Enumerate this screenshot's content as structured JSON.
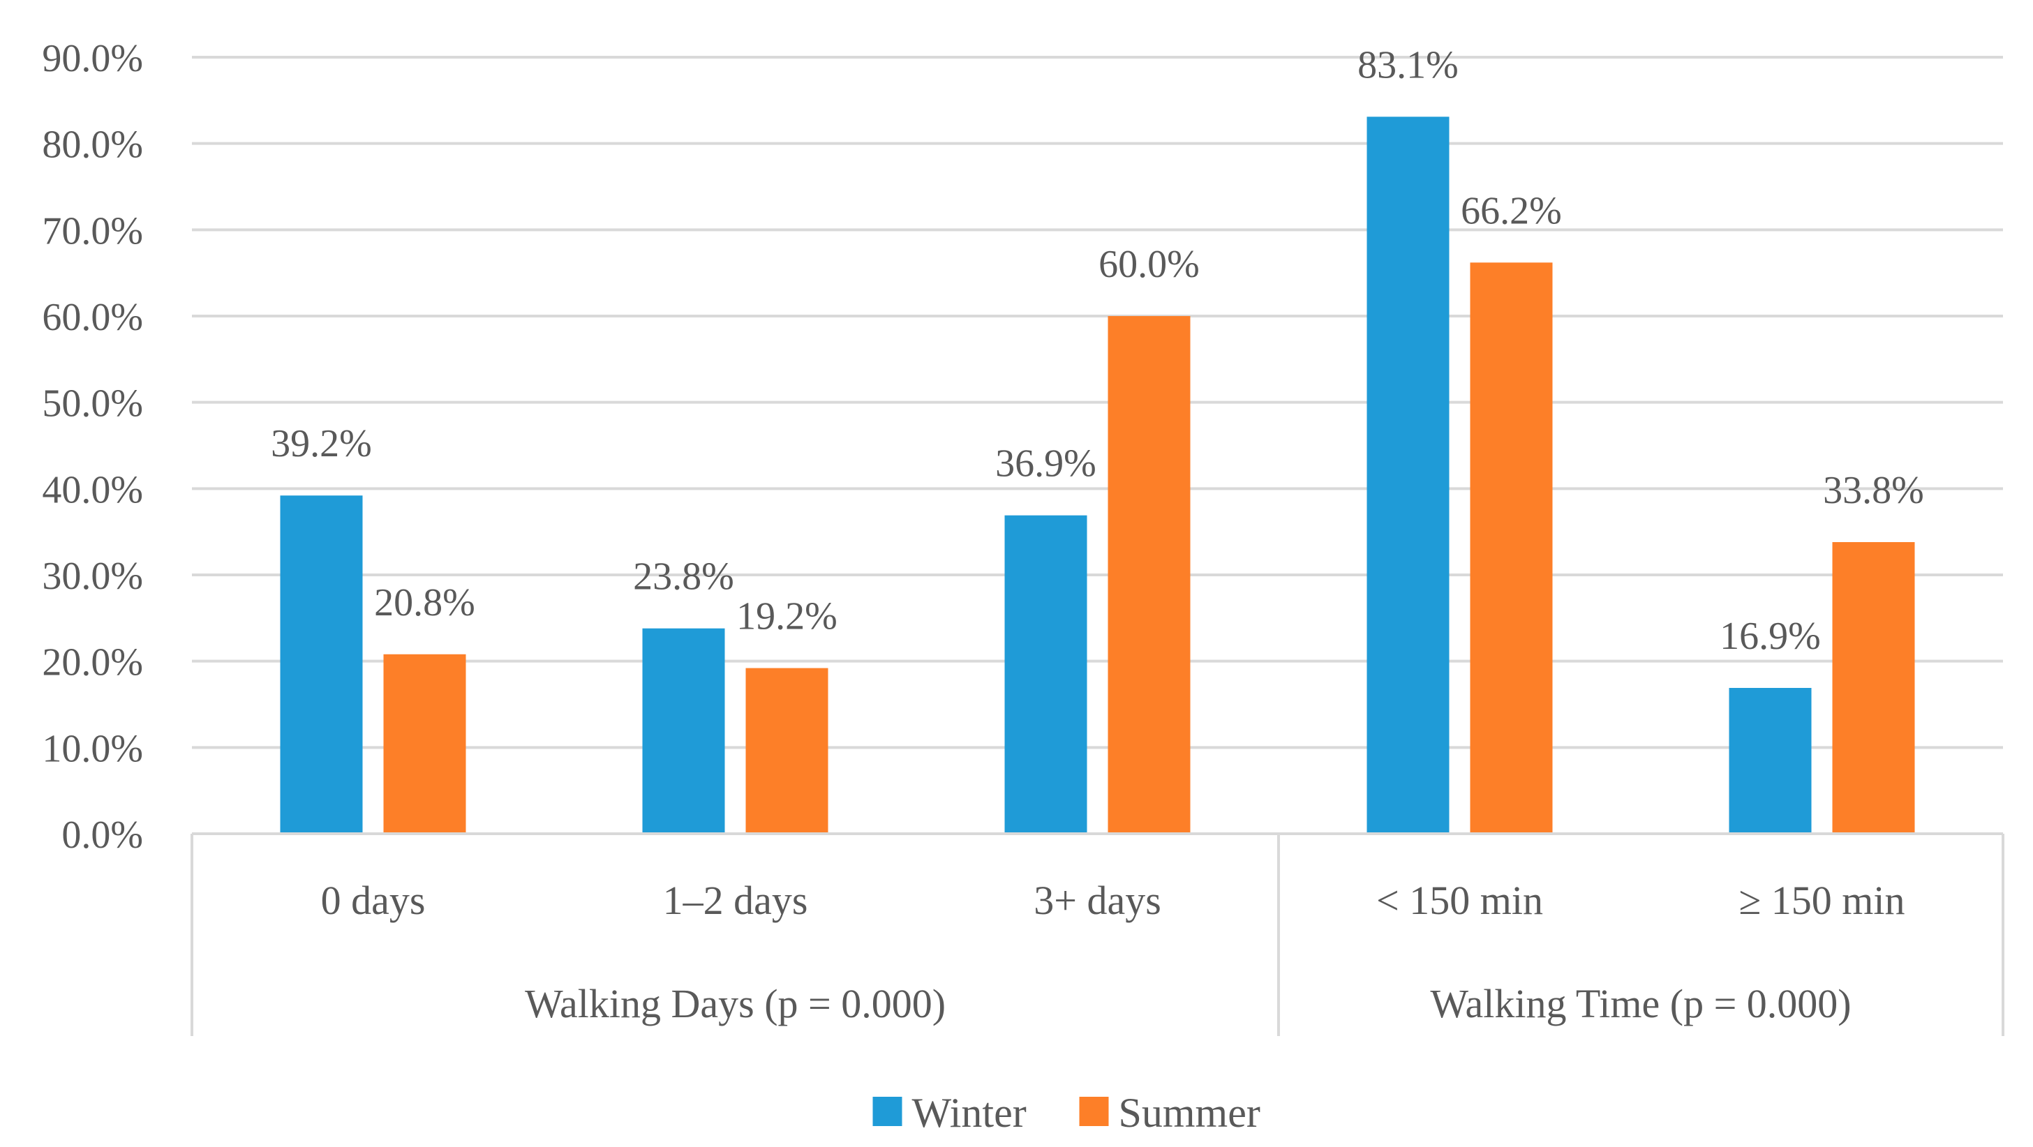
{
  "chart_data": {
    "type": "bar",
    "title": "",
    "xlabel": "",
    "ylabel": "",
    "ylim": [
      0,
      90
    ],
    "y_ticks": [
      "0.0%",
      "10.0%",
      "20.0%",
      "30.0%",
      "40.0%",
      "50.0%",
      "60.0%",
      "70.0%",
      "80.0%",
      "90.0%"
    ],
    "grid": true,
    "legend_position": "bottom-center",
    "categories": [
      "0 days",
      "1–2 days",
      "3+ days",
      "< 150 min",
      "≥ 150 min"
    ],
    "groups": [
      {
        "label": "Walking Days (p = 0.000)",
        "category_count": 3
      },
      {
        "label": "Walking Time (p = 0.000)",
        "category_count": 2
      }
    ],
    "series": [
      {
        "name": "Winter",
        "color": "#1F9BD7",
        "values": [
          39.2,
          23.8,
          36.9,
          83.1,
          16.9
        ],
        "labels": [
          "39.2%",
          "23.8%",
          "36.9%",
          "83.1%",
          "16.9%"
        ]
      },
      {
        "name": "Summer",
        "color": "#FD7F28",
        "values": [
          20.8,
          19.2,
          60.0,
          66.2,
          33.8
        ],
        "labels": [
          "20.8%",
          "19.2%",
          "60.0%",
          "66.2%",
          "33.8%"
        ]
      }
    ]
  }
}
